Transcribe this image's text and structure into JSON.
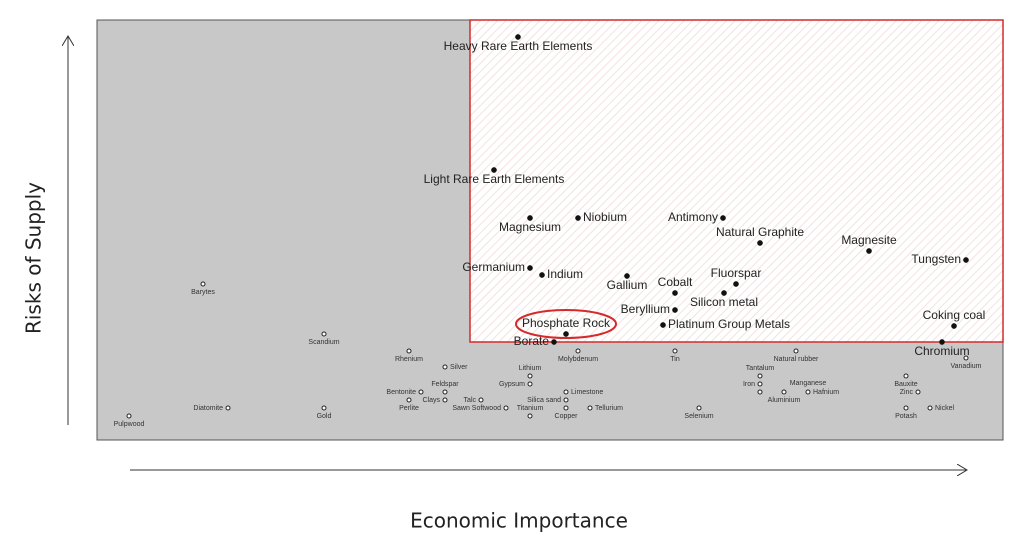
{
  "chart_data": {
    "type": "scatter",
    "x_label": "Economic Importance",
    "y_label": "Risks of Supply",
    "xlim": [
      0,
      906
    ],
    "ylim": [
      0,
      420
    ],
    "critical_region": {
      "x": 373,
      "y": 98
    },
    "highlight_index": 16,
    "labels": [
      "Heavy Rare Earth Elements",
      "Light Rare Earth Elements",
      "Magnesium",
      "Niobium",
      "Antimony",
      "Natural Graphite",
      "Magnesite",
      "Tungsten",
      "Germanium",
      "Indium",
      "Gallium",
      "Cobalt",
      "Fluorspar",
      "Silicon metal",
      "Beryllium",
      "Platinum Group Metals",
      "Phosphate Rock",
      "Coking coal",
      "Borate",
      "Chromium",
      "Barytes",
      "Scandium",
      "Rhenium",
      "Silver",
      "Molybdenum",
      "Lithium",
      "Tin",
      "Natural rubber",
      "Tantalum",
      "Vanadium",
      "Feldspar",
      "Gypsum",
      "Bentonite",
      "Clays",
      "Talc",
      "Limestone",
      "Silica sand",
      "Iron",
      "Manganese",
      "Hafnium",
      "Aluminium",
      "Bauxite",
      "Zinc",
      "Diatomite",
      "Gold",
      "Perlite",
      "Sawn Softwood",
      "Titanium",
      "Copper",
      "Tellurium",
      "Selenium",
      "Potash",
      "Nickel",
      "Pulpwood"
    ],
    "x": [
      421,
      397,
      433,
      481,
      626,
      663,
      772,
      869,
      433,
      445,
      530,
      578,
      639,
      627,
      578,
      566,
      469,
      857,
      457,
      845,
      106,
      227,
      312,
      348,
      481,
      433,
      578,
      699,
      663,
      869,
      348,
      433,
      324,
      348,
      384,
      469,
      469,
      663,
      687,
      711,
      663,
      809,
      821,
      131,
      227,
      312,
      409,
      433,
      469,
      493,
      602,
      809,
      833,
      32
    ],
    "y": [
      403,
      270,
      222,
      222,
      222,
      197,
      189,
      180,
      172,
      165,
      164,
      147,
      156,
      147,
      130,
      115,
      106,
      114,
      98,
      98,
      156,
      106,
      89,
      73,
      89,
      64,
      89,
      89,
      64,
      82,
      48,
      56,
      48,
      40,
      40,
      48,
      40,
      56,
      48,
      48,
      48,
      64,
      48,
      32,
      32,
      40,
      32,
      24,
      32,
      32,
      32,
      32,
      32,
      24
    ]
  }
}
